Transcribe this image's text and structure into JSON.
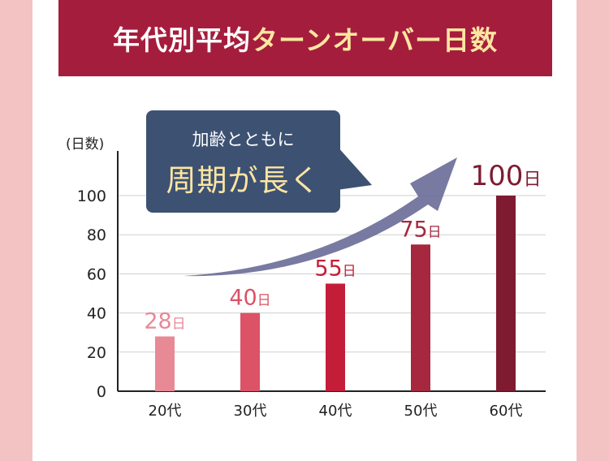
{
  "title": {
    "part1": "年代別平均",
    "part2": "ターンオーバー日数"
  },
  "callout": {
    "line1": "加齢とともに",
    "line2": "周期が長く"
  },
  "colors": {
    "title_bg": "#a51d3d",
    "title_accent": "#fde6a1",
    "callout_bg": "#3d5173",
    "arrow": "#6c6f99",
    "bars": [
      "#e88996",
      "#dc5266",
      "#c41d39",
      "#a5283f",
      "#7e1b30"
    ]
  },
  "chart_data": {
    "type": "bar",
    "categories": [
      "20代",
      "30代",
      "40代",
      "50代",
      "60代"
    ],
    "values": [
      28,
      40,
      55,
      75,
      100
    ],
    "data_labels": [
      "28日",
      "40日",
      "55日",
      "75日",
      "100日"
    ],
    "ylabel": "(日数)",
    "ylim": [
      0,
      100
    ],
    "yticks": [
      0,
      20,
      40,
      60,
      80,
      100
    ],
    "grid": true,
    "legend": "none"
  }
}
